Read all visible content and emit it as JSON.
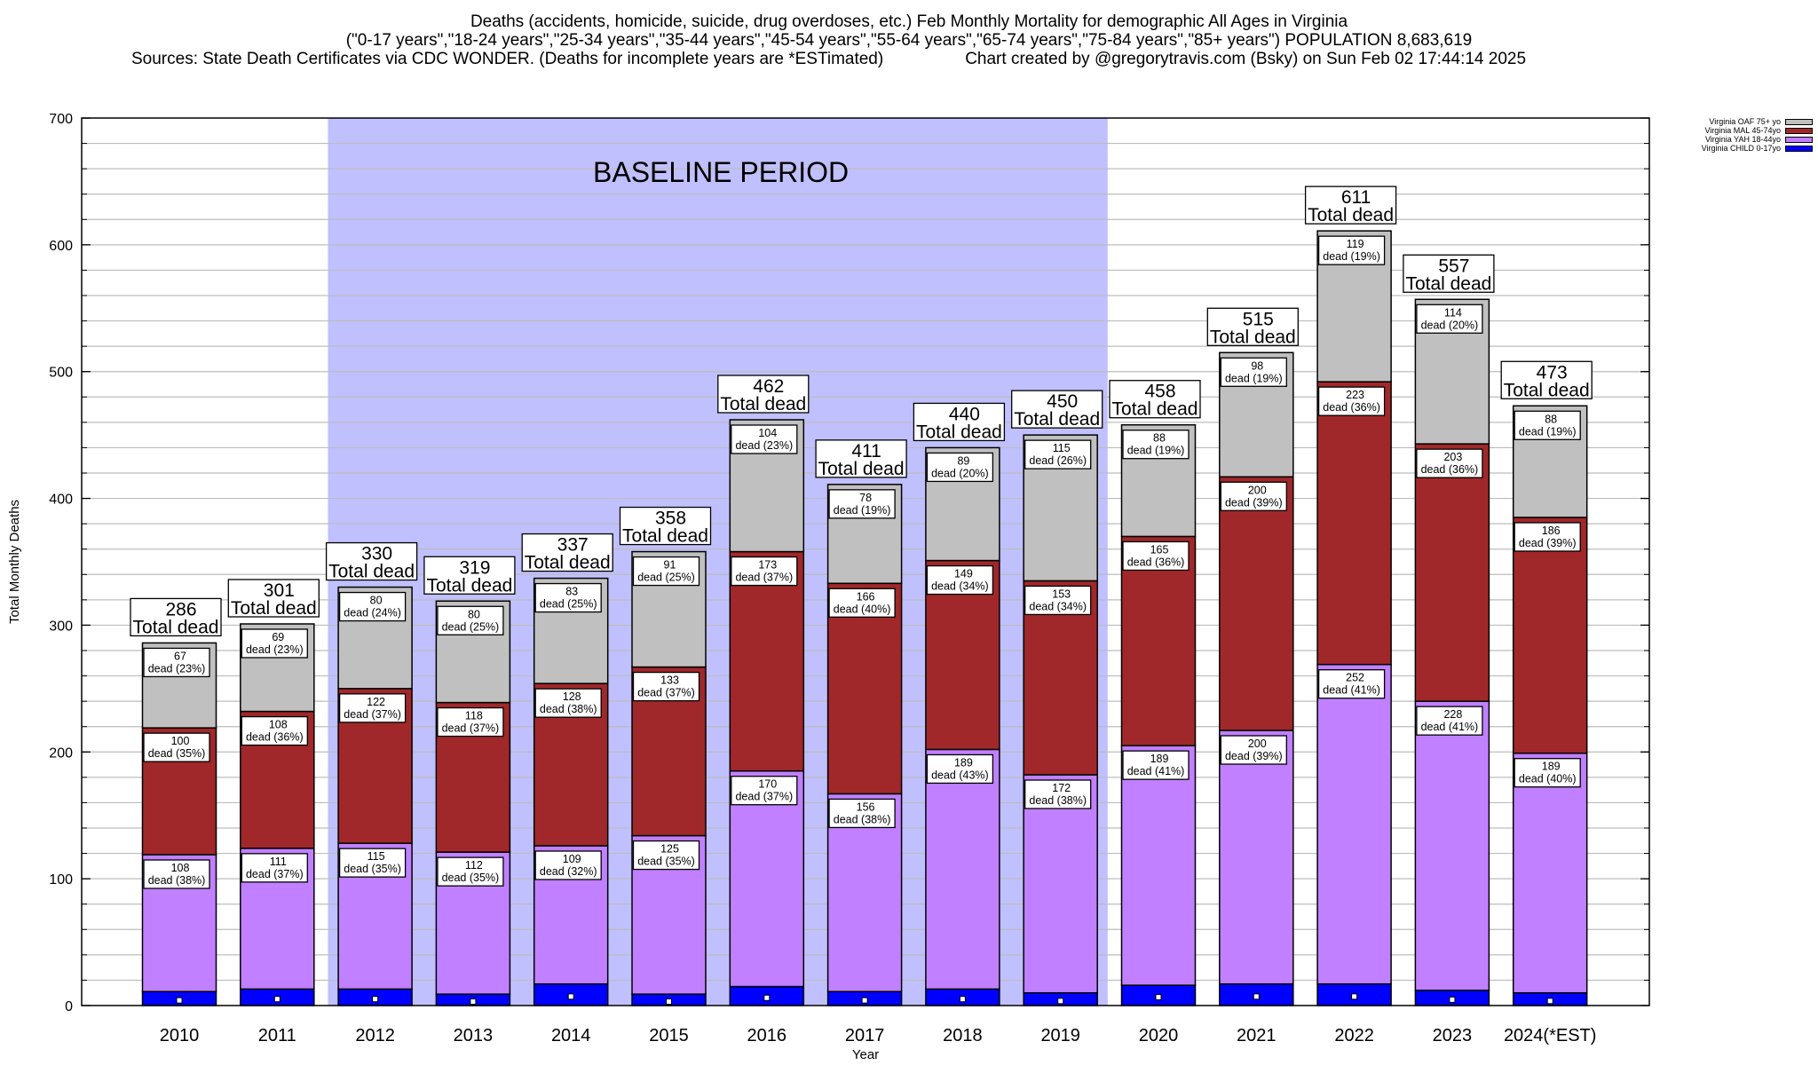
{
  "header": {
    "title_line1": "Deaths (accidents, homicide, suicide, drug overdoses, etc.) Feb Monthly Mortality for demographic All Ages in Virginia",
    "title_line2": "(\"0-17 years\",\"18-24 years\",\"25-34 years\",\"35-44 years\",\"45-54 years\",\"55-64 years\",\"65-74 years\",\"75-84 years\",\"85+ years\") POPULATION 8,683,619",
    "sources": "Sources: State Death Certificates via CDC WONDER. (Deaths for incomplete years are *ESTimated)",
    "credit": "Chart created by @gregorytravis.com (Bsky) on Sun Feb 02 17:44:14 2025"
  },
  "chart_data": {
    "type": "bar",
    "stacked": true,
    "title": "Deaths (accidents, homicide, suicide, drug overdoses, etc.) Feb Monthly Mortality for demographic All Ages in Virginia",
    "xlabel": "Year",
    "ylabel": "Total Monthly Deaths",
    "ylim": [
      0,
      700
    ],
    "yticks": [
      0,
      100,
      200,
      300,
      400,
      500,
      600,
      700
    ],
    "minor_grid_step": 20,
    "grid": true,
    "legend_position": "top-right (outside plot)",
    "categories": [
      "2010",
      "2011",
      "2012",
      "2013",
      "2014",
      "2015",
      "2016",
      "2017",
      "2018",
      "2019",
      "2020",
      "2021",
      "2022",
      "2023",
      "2024(*EST)"
    ],
    "series": [
      {
        "name": "Virginia CHILD 0-17yo",
        "color": "#0000ff",
        "values": [
          11,
          13,
          13,
          9,
          17,
          9,
          15,
          11,
          13,
          10,
          16,
          17,
          17,
          12,
          10
        ]
      },
      {
        "name": "Virginia YAH 18-44yo",
        "color": "#c080ff",
        "values": [
          108,
          111,
          115,
          112,
          109,
          125,
          170,
          156,
          189,
          172,
          189,
          200,
          252,
          228,
          189
        ],
        "labels": [
          "108\ndead (38%)",
          "111\ndead (37%)",
          "115\ndead (35%)",
          "112\ndead (35%)",
          "109\ndead (32%)",
          "125\ndead (35%)",
          "170\ndead (37%)",
          "156\ndead (38%)",
          "189\ndead (43%)",
          "172\ndead (38%)",
          "189\ndead (41%)",
          "200\ndead (39%)",
          "252\ndead (41%)",
          "228\ndead (41%)",
          "189\ndead (40%)"
        ],
        "pct": [
          "38%",
          "37%",
          "35%",
          "35%",
          "32%",
          "35%",
          "37%",
          "38%",
          "43%",
          "38%",
          "41%",
          "39%",
          "41%",
          "41%",
          "40%"
        ]
      },
      {
        "name": "Virginia MAL 45-74yo",
        "color": "#a0282a",
        "values": [
          100,
          108,
          122,
          118,
          128,
          133,
          173,
          166,
          149,
          153,
          165,
          200,
          223,
          203,
          186
        ],
        "pct": [
          "35%",
          "36%",
          "37%",
          "37%",
          "38%",
          "37%",
          "37%",
          "40%",
          "34%",
          "34%",
          "36%",
          "39%",
          "36%",
          "36%",
          "39%"
        ]
      },
      {
        "name": "Virginia OAF 75+ yo",
        "color": "#c0c0c0",
        "values": [
          67,
          69,
          80,
          80,
          83,
          91,
          104,
          78,
          89,
          115,
          88,
          98,
          119,
          114,
          88
        ],
        "pct": [
          "23%",
          "23%",
          "24%",
          "25%",
          "25%",
          "25%",
          "23%",
          "19%",
          "20%",
          "26%",
          "19%",
          "19%",
          "19%",
          "20%",
          "19%"
        ]
      }
    ],
    "totals": [
      286,
      301,
      330,
      319,
      337,
      358,
      462,
      411,
      440,
      450,
      458,
      515,
      611,
      557,
      473
    ],
    "total_label_suffix": "Total dead",
    "segment_label_prefix": "dead",
    "baseline": {
      "label": "BASELINE PERIOD",
      "from": "2012",
      "to": "2019",
      "color": "#c0c0ff"
    }
  },
  "legend": {
    "items": [
      {
        "label": "Virginia OAF 75+ yo",
        "color": "#c0c0c0"
      },
      {
        "label": "Virginia MAL 45-74yo",
        "color": "#a0282a"
      },
      {
        "label": "Virginia YAH 18-44yo",
        "color": "#c080ff"
      },
      {
        "label": "Virginia CHILD 0-17yo",
        "color": "#0000ff"
      }
    ]
  }
}
